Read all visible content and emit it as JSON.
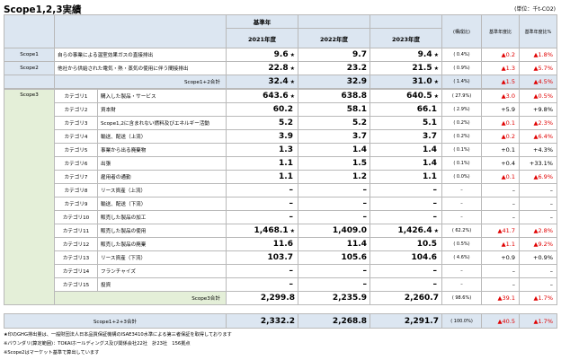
{
  "title": "Scope1,2,3実績",
  "unit": "(単位：千t-CO2)",
  "header": {
    "base_year_label": "基準年",
    "years": [
      "2021年度",
      "2022年度",
      "2023年度"
    ],
    "composition_label": "(構成比)",
    "base_ratio_label": "基準年度比",
    "base_ratio_pct_label": "基準年度比%"
  },
  "scope12": [
    {
      "scope": "Scope1",
      "desc": "自らの事業による温室効果ガスの直接排出",
      "v2021": "9.6",
      "s2021": "★",
      "v2022": "9.7",
      "v2023": "9.4",
      "s2023": "★",
      "comp": "( 0.4%)",
      "diff": "▲0.2",
      "diff_neg": true,
      "pct": "▲1.8%",
      "pct_neg": true
    },
    {
      "scope": "Scope2",
      "desc": "他社から供給された電気・熱・蒸気の使用に伴う間接排出",
      "v2021": "22.8",
      "s2021": "★",
      "v2022": "23.2",
      "v2023": "21.5",
      "s2023": "★",
      "comp": "( 0.9%)",
      "diff": "▲1.3",
      "diff_neg": true,
      "pct": "▲5.7%",
      "pct_neg": true
    }
  ],
  "scope12_total": {
    "label": "Scope1+2合計",
    "v2021": "32.4",
    "s2021": "★",
    "v2022": "32.9",
    "v2023": "31.0",
    "s2023": "★",
    "comp": "( 1.4%)",
    "diff": "▲1.5",
    "pct": "▲4.5%"
  },
  "scope3_label": "Scope3",
  "scope3": [
    {
      "cat": "カテゴリ1",
      "desc": "購入した製品・サービス",
      "v2021": "643.6",
      "s2021": "★",
      "v2022": "638.8",
      "v2023": "640.5",
      "s2023": "★",
      "comp": "( 27.9%)",
      "diff": "▲3.0",
      "diff_neg": true,
      "pct": "▲0.5%",
      "pct_neg": true
    },
    {
      "cat": "カテゴリ2",
      "desc": "資本財",
      "v2021": "60.2",
      "s2021": "",
      "v2022": "58.1",
      "v2023": "66.1",
      "s2023": "",
      "comp": "( 2.9%)",
      "diff": "+5.9",
      "diff_neg": false,
      "pct": "+9.8%",
      "pct_neg": false
    },
    {
      "cat": "カテゴリ3",
      "desc": "Scope1,2に含まれない燃料及びエネルギー活動",
      "v2021": "5.2",
      "s2021": "",
      "v2022": "5.2",
      "v2023": "5.1",
      "s2023": "",
      "comp": "( 0.2%)",
      "diff": "▲0.1",
      "diff_neg": true,
      "pct": "▲2.3%",
      "pct_neg": true
    },
    {
      "cat": "カテゴリ4",
      "desc": "輸送、配送（上流）",
      "v2021": "3.9",
      "s2021": "",
      "v2022": "3.7",
      "v2023": "3.7",
      "s2023": "",
      "comp": "( 0.2%)",
      "diff": "▲0.2",
      "diff_neg": true,
      "pct": "▲6.4%",
      "pct_neg": true
    },
    {
      "cat": "カテゴリ5",
      "desc": "事業から出る廃棄物",
      "v2021": "1.3",
      "s2021": "",
      "v2022": "1.4",
      "v2023": "1.4",
      "s2023": "",
      "comp": "( 0.1%)",
      "diff": "+0.1",
      "diff_neg": false,
      "pct": "+4.3%",
      "pct_neg": false
    },
    {
      "cat": "カテゴリ6",
      "desc": "出張",
      "v2021": "1.1",
      "s2021": "",
      "v2022": "1.5",
      "v2023": "1.4",
      "s2023": "",
      "comp": "( 0.1%)",
      "diff": "+0.4",
      "diff_neg": false,
      "pct": "+33.1%",
      "pct_neg": false
    },
    {
      "cat": "カテゴリ7",
      "desc": "雇用者の通勤",
      "v2021": "1.1",
      "s2021": "",
      "v2022": "1.2",
      "v2023": "1.1",
      "s2023": "",
      "comp": "( 0.0%)",
      "diff": "▲0.1",
      "diff_neg": true,
      "pct": "▲6.9%",
      "pct_neg": true
    },
    {
      "cat": "カテゴリ8",
      "desc": "リース資産（上流）",
      "v2021": "–",
      "s2021": "",
      "v2022": "–",
      "v2023": "–",
      "s2023": "",
      "comp": "–",
      "diff": "–",
      "diff_neg": false,
      "pct": "–",
      "pct_neg": false
    },
    {
      "cat": "カテゴリ9",
      "desc": "輸送、配送（下流）",
      "v2021": "–",
      "s2021": "",
      "v2022": "–",
      "v2023": "–",
      "s2023": "",
      "comp": "–",
      "diff": "–",
      "diff_neg": false,
      "pct": "–",
      "pct_neg": false
    },
    {
      "cat": "カテゴリ10",
      "desc": "販売した製品の加工",
      "v2021": "–",
      "s2021": "",
      "v2022": "–",
      "v2023": "–",
      "s2023": "",
      "comp": "–",
      "diff": "–",
      "diff_neg": false,
      "pct": "–",
      "pct_neg": false
    },
    {
      "cat": "カテゴリ11",
      "desc": "販売した製品の使用",
      "v2021": "1,468.1",
      "s2021": "★",
      "v2022": "1,409.0",
      "v2023": "1,426.4",
      "s2023": "★",
      "comp": "( 62.2%)",
      "diff": "▲41.7",
      "diff_neg": true,
      "pct": "▲2.8%",
      "pct_neg": true
    },
    {
      "cat": "カテゴリ12",
      "desc": "販売した製品の廃棄",
      "v2021": "11.6",
      "s2021": "",
      "v2022": "11.4",
      "v2023": "10.5",
      "s2023": "",
      "comp": "( 0.5%)",
      "diff": "▲1.1",
      "diff_neg": true,
      "pct": "▲9.2%",
      "pct_neg": true
    },
    {
      "cat": "カテゴリ13",
      "desc": "リース資産（下流）",
      "v2021": "103.7",
      "s2021": "",
      "v2022": "105.6",
      "v2023": "104.6",
      "s2023": "",
      "comp": "( 4.6%)",
      "diff": "+0.9",
      "diff_neg": false,
      "pct": "+0.9%",
      "pct_neg": false
    },
    {
      "cat": "カテゴリ14",
      "desc": "フランチャイズ",
      "v2021": "–",
      "s2021": "",
      "v2022": "–",
      "v2023": "–",
      "s2023": "",
      "comp": "–",
      "diff": "–",
      "diff_neg": false,
      "pct": "–",
      "pct_neg": false
    },
    {
      "cat": "カテゴリ15",
      "desc": "投資",
      "v2021": "–",
      "s2021": "",
      "v2022": "–",
      "v2023": "–",
      "s2023": "",
      "comp": "–",
      "diff": "–",
      "diff_neg": false,
      "pct": "–",
      "pct_neg": false
    }
  ],
  "scope3_total": {
    "label": "Scope3合計",
    "v2021": "2,299.8",
    "v2022": "2,235.9",
    "v2023": "2,260.7",
    "comp": "( 98.6%)",
    "diff": "▲39.1",
    "pct": "▲1.7%"
  },
  "grand_total": {
    "label": "Scope1+2+3合計",
    "v2021": "2,332.2",
    "v2022": "2,268.8",
    "v2023": "2,291.7",
    "comp": "( 100.0%)",
    "diff": "▲40.5",
    "pct": "▲1.7%"
  },
  "footnotes": [
    "★印のGHG排出量は、一般財団法人日本品質保証機構のISAE3410水準による第三者保証を取得しております",
    "※バウンダリ(算定範囲)：TOKAIホールディングス及び関係会社22社　計23社　156拠点",
    "※Scope2はマーケット基準で算出しています"
  ]
}
